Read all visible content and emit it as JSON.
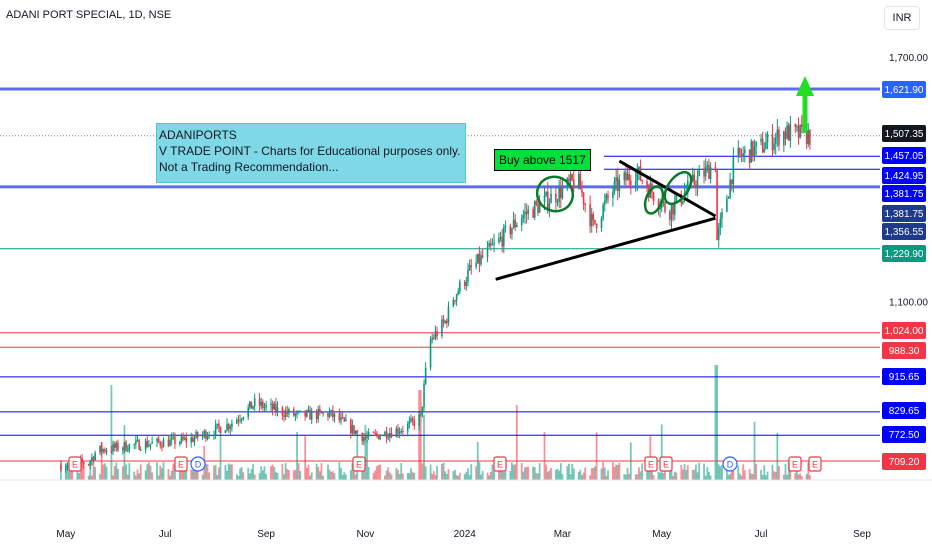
{
  "header": {
    "title": "ADANI PORT SPECIAL, 1D, NSE",
    "currency": "INR"
  },
  "annotations": {
    "note_lines": [
      "ADANIPORTS",
      "V TRADE POINT - Charts for Educational purposes only.",
      "Not a Trading Recommendation..."
    ],
    "buy_label": "Buy above 1517"
  },
  "chart_data": {
    "type": "candlestick",
    "title": "ADANI PORT SPECIAL, 1D, NSE",
    "currency": "INR",
    "ylim": [
      610,
      1750
    ],
    "x_tick_labels": [
      "May",
      "Jul",
      "Sep",
      "Nov",
      "2024",
      "Mar",
      "May",
      "Jul",
      "Sep"
    ],
    "y_tick_labels": [
      "1,700.00",
      "1,100.00"
    ],
    "horizontal_levels": [
      {
        "value": 1621.9,
        "label": "1,621.90",
        "color": "#2962ff"
      },
      {
        "value": 1507.35,
        "label": "1,507.35",
        "color": "#131722"
      },
      {
        "value": 1457.05,
        "label": "1,457.05",
        "color": "#0000ff"
      },
      {
        "value": 1424.95,
        "label": "1,424.95",
        "color": "#0000ff"
      },
      {
        "value": 1381.75,
        "label": "1,381.75",
        "color": "#0000ff"
      },
      {
        "value": 1381.75,
        "label": "1,381.75",
        "color": "#1e3a8a"
      },
      {
        "value": 1356.55,
        "label": "1,356.55",
        "color": "#1e3a8a"
      },
      {
        "value": 1229.9,
        "label": "1,229.90",
        "color": "#089981"
      },
      {
        "value": 1024.0,
        "label": "1,024.00",
        "color": "#f23645"
      },
      {
        "value": 988.3,
        "label": "988.30",
        "color": "#f23645"
      },
      {
        "value": 915.65,
        "label": "915.65",
        "color": "#0000ff"
      },
      {
        "value": 829.65,
        "label": "829.65",
        "color": "#0000ff"
      },
      {
        "value": 772.5,
        "label": "772.50",
        "color": "#0000ff"
      },
      {
        "value": 709.2,
        "label": "709.20",
        "color": "#f23645"
      }
    ],
    "price_path": [
      [
        "2023-04-28",
        700
      ],
      [
        "2023-05-15",
        705
      ],
      [
        "2023-05-20",
        735
      ],
      [
        "2023-06-15",
        750
      ],
      [
        "2023-07-15",
        760
      ],
      [
        "2023-08-10",
        800
      ],
      [
        "2023-08-25",
        850
      ],
      [
        "2023-09-20",
        820
      ],
      [
        "2023-10-10",
        825
      ],
      [
        "2023-11-01",
        765
      ],
      [
        "2023-11-25",
        790
      ],
      [
        "2023-12-05",
        815
      ],
      [
        "2023-12-10",
        1000
      ],
      [
        "2023-12-20",
        1050
      ],
      [
        "2023-12-25",
        1110
      ],
      [
        "2024-01-05",
        1180
      ],
      [
        "2024-01-20",
        1240
      ],
      [
        "2024-02-05",
        1310
      ],
      [
        "2024-02-25",
        1360
      ],
      [
        "2024-03-10",
        1400
      ],
      [
        "2024-03-20",
        1285
      ],
      [
        "2024-04-01",
        1375
      ],
      [
        "2024-04-15",
        1420
      ],
      [
        "2024-05-05",
        1320
      ],
      [
        "2024-05-20",
        1390
      ],
      [
        "2024-06-03",
        1440
      ],
      [
        "2024-06-04",
        1250
      ],
      [
        "2024-06-15",
        1450
      ],
      [
        "2024-07-01",
        1480
      ],
      [
        "2024-07-15",
        1515
      ],
      [
        "2024-07-31",
        1507
      ]
    ],
    "trendlines": [
      {
        "from": [
          "2024-01-20",
          1155
        ],
        "to": [
          "2024-06-03",
          1305
        ]
      },
      {
        "from": [
          "2024-04-05",
          1445
        ],
        "to": [
          "2024-06-03",
          1310
        ]
      }
    ],
    "event_markers": [
      "E",
      "E",
      "D",
      "E",
      "E",
      "E",
      "E",
      "D",
      "E",
      "E"
    ],
    "colors": {
      "up": "#089981",
      "down": "#f23645"
    }
  }
}
